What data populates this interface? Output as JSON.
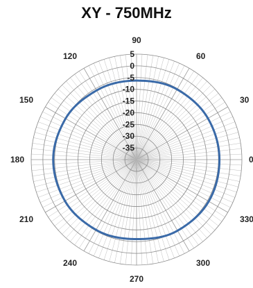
{
  "chart_data": {
    "type": "polar-line",
    "title": "XY - 750MHz",
    "angle_ticks": [
      "0",
      "30",
      "60",
      "90",
      "120",
      "150",
      "180",
      "210",
      "240",
      "270",
      "300",
      "330"
    ],
    "angle_tick_values": [
      0,
      30,
      60,
      90,
      120,
      150,
      180,
      210,
      240,
      270,
      300,
      330
    ],
    "radial_ticks": [
      5,
      0,
      -5,
      -10,
      -15,
      -20,
      -25,
      -30,
      -35
    ],
    "radial_range": [
      -40,
      5
    ],
    "series": [
      {
        "color": "#3a6aa8",
        "angles": [
          0,
          30,
          60,
          90,
          120,
          150,
          180,
          210,
          240,
          270,
          300,
          330,
          360
        ],
        "values": [
          -4.6,
          -4.8,
          -5.4,
          -6.3,
          -5.9,
          -5.0,
          -4.4,
          -4.7,
          -5.4,
          -6.1,
          -5.0,
          -4.4,
          -4.6
        ]
      }
    ]
  }
}
